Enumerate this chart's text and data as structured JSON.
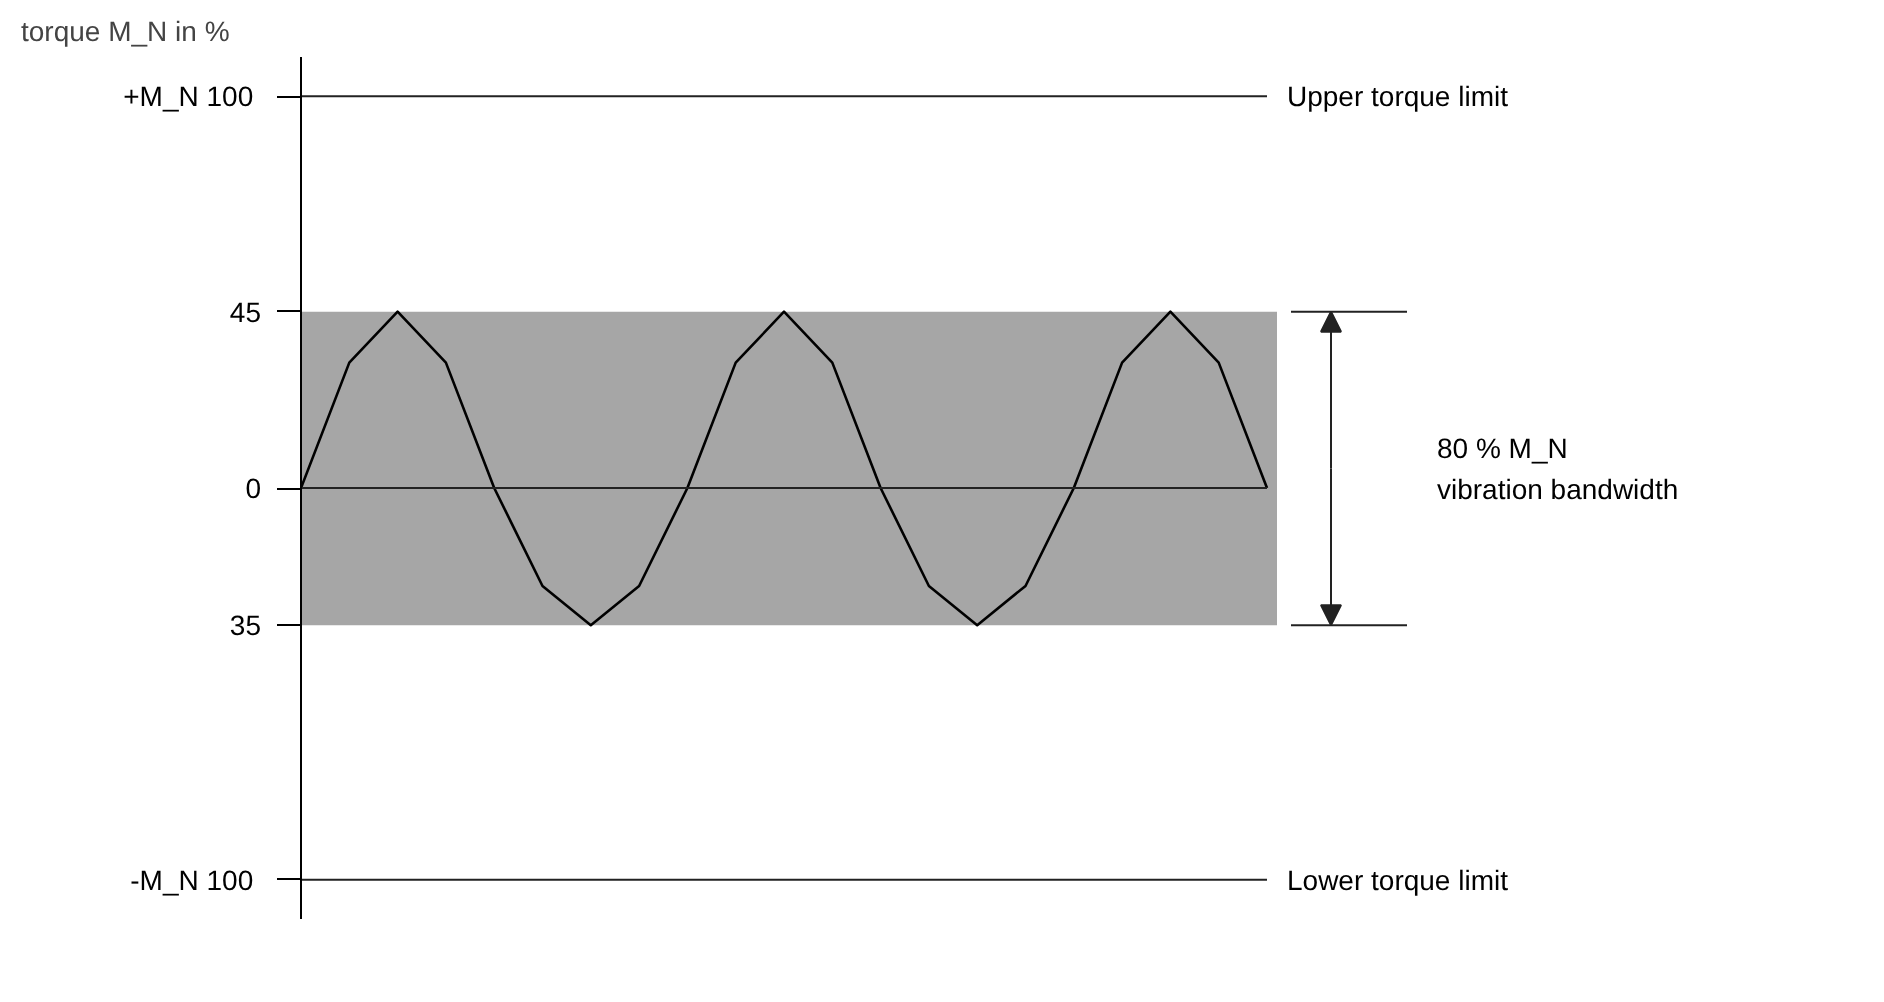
{
  "chart_data": {
    "type": "line",
    "ylabel": "torque M_N in %",
    "categories": [
      null,
      null,
      null,
      null,
      null,
      null,
      null,
      null,
      null,
      null,
      null,
      null,
      null,
      null,
      null,
      null,
      null,
      null,
      null,
      null,
      null
    ],
    "series": [
      {
        "color": "#000000",
        "values": [
          0,
          32,
          45,
          32,
          0,
          -25,
          -35,
          -25,
          0,
          32,
          45,
          32,
          0,
          -25,
          -35,
          -25,
          0,
          32,
          45,
          32,
          0
        ]
      }
    ],
    "ylim": [
      -110,
      110
    ],
    "yticks": [
      {
        "value": 100,
        "label": "+M_N  100"
      },
      45,
      0,
      {
        "value": -35,
        "label": "35"
      },
      {
        "value": -100,
        "label": "-M_N  100"
      }
    ],
    "tick_labels": "y",
    "grid": false,
    "marker": "none",
    "line_style": "solid",
    "bands": [
      {
        "axis": "y",
        "from": -35,
        "to": 45,
        "color": "#a6a6a6"
      }
    ],
    "ref_lines": [
      {
        "axis": "y",
        "value": 100,
        "label": "Upper torque limit"
      },
      {
        "axis": "y",
        "value": 0,
        "label": null
      },
      {
        "axis": "y",
        "value": -100,
        "label": "Lower torque limit"
      }
    ],
    "annotations": [
      "80 % M_N\nvibration bandwidth"
    ]
  }
}
